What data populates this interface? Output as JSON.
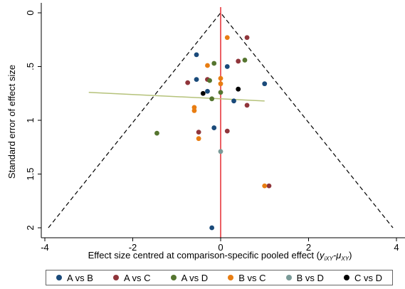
{
  "chart_data": {
    "type": "scatter",
    "title": "",
    "xlabel_prefix": "Effect size centred at comparison-specific pooled effect (",
    "xlabel_formula": "y",
    "xlabel_sub1": "iXY",
    "xlabel_mid": "-μ",
    "xlabel_sub2": "XY",
    "xlabel_suffix": ")",
    "ylabel": "Standard error of effect size",
    "xlim": [
      -4,
      4
    ],
    "ylim": [
      0,
      2
    ],
    "y_reversed": true,
    "xticks": [
      -4,
      -2,
      0,
      2,
      4
    ],
    "yticks": [
      0,
      0.5,
      1,
      1.5,
      2
    ],
    "ytick_labels": [
      "0",
      ".5",
      "1",
      "1.5",
      "2"
    ],
    "grid": false,
    "legend_placement": "bottom",
    "funnel": {
      "center": 0,
      "apex_se": 0,
      "base_se": 2,
      "base_half_width": 3.92,
      "color": "#000000",
      "style": "dashed"
    },
    "reference_line": {
      "x": 0,
      "color": "#e8383d"
    },
    "regression_line": {
      "x": [
        -3,
        1
      ],
      "y": [
        0.74,
        0.82
      ],
      "color": "#b5c27a"
    },
    "series": [
      {
        "name": "A vs B",
        "color": "#1a4a7a",
        "points": [
          [
            -0.55,
            0.39
          ],
          [
            0.15,
            0.5
          ],
          [
            -0.55,
            0.62
          ],
          [
            -0.3,
            0.73
          ],
          [
            0.3,
            0.82
          ],
          [
            1.0,
            0.66
          ],
          [
            -0.15,
            1.07
          ],
          [
            -0.2,
            2.0
          ]
        ]
      },
      {
        "name": "A vs C",
        "color": "#90353b",
        "points": [
          [
            0.6,
            0.23
          ],
          [
            0.4,
            0.45
          ],
          [
            -0.75,
            0.65
          ],
          [
            -0.3,
            0.62
          ],
          [
            0.6,
            0.86
          ],
          [
            0.15,
            1.1
          ],
          [
            -0.5,
            1.11
          ],
          [
            1.1,
            1.61
          ]
        ]
      },
      {
        "name": "A vs D",
        "color": "#55752f",
        "points": [
          [
            -0.15,
            0.47
          ],
          [
            0.55,
            0.44
          ],
          [
            -0.25,
            0.63
          ],
          [
            0.0,
            0.74
          ],
          [
            -0.2,
            0.8
          ],
          [
            -1.45,
            1.12
          ]
        ]
      },
      {
        "name": "B vs C",
        "color": "#e87d12",
        "points": [
          [
            0.15,
            0.23
          ],
          [
            -0.3,
            0.49
          ],
          [
            0.0,
            0.61
          ],
          [
            0.0,
            0.66
          ],
          [
            -0.6,
            0.88
          ],
          [
            -0.6,
            0.91
          ],
          [
            -0.5,
            1.17
          ],
          [
            1.0,
            1.61
          ]
        ]
      },
      {
        "name": "B vs D",
        "color": "#7a9a98",
        "points": [
          [
            0.0,
            1.29
          ]
        ]
      },
      {
        "name": "C vs D",
        "color": "#000000",
        "points": [
          [
            -0.4,
            0.75
          ],
          [
            0.4,
            0.71
          ]
        ]
      }
    ]
  }
}
